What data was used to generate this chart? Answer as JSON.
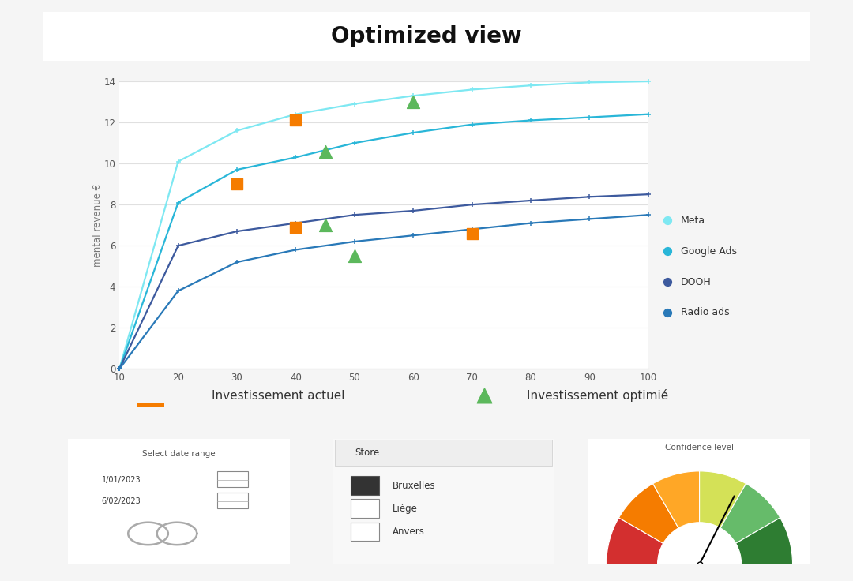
{
  "title": "Optimized view",
  "background_color": "#f5f5f5",
  "plot_bg": "#ffffff",
  "x_values": [
    10,
    20,
    30,
    40,
    50,
    60,
    70,
    80,
    90,
    100
  ],
  "curves": {
    "Meta": {
      "color": "#7ee8f2",
      "values": [
        0,
        10.1,
        11.6,
        12.4,
        12.9,
        13.3,
        13.6,
        13.8,
        13.95,
        14.0
      ]
    },
    "Google Ads": {
      "color": "#29b6d8",
      "values": [
        0,
        8.1,
        9.7,
        10.3,
        11.0,
        11.5,
        11.9,
        12.1,
        12.25,
        12.4
      ]
    },
    "DOOH": {
      "color": "#3d5a9e",
      "values": [
        0,
        6.0,
        6.7,
        7.1,
        7.5,
        7.7,
        8.0,
        8.2,
        8.38,
        8.5
      ]
    },
    "Radio ads": {
      "color": "#2979b8",
      "values": [
        0,
        3.8,
        5.2,
        5.8,
        6.2,
        6.5,
        6.8,
        7.1,
        7.3,
        7.5
      ]
    }
  },
  "orange_markers": [
    [
      40,
      12.1
    ],
    [
      30,
      9.0
    ],
    [
      40,
      6.9
    ],
    [
      70,
      6.6
    ]
  ],
  "green_markers": [
    [
      60,
      13.0
    ],
    [
      45,
      10.6
    ],
    [
      45,
      7.0
    ],
    [
      50,
      5.5
    ]
  ],
  "ylabel": "mental revenue €",
  "xlim": [
    10,
    100
  ],
  "ylim": [
    0,
    14
  ],
  "legend_entries": [
    "Meta",
    "Google Ads",
    "DOOH",
    "Radio ads"
  ],
  "legend_colors": [
    "#7ee8f2",
    "#29b6d8",
    "#3d5a9e",
    "#2979b8"
  ],
  "orange_color": "#f57c00",
  "green_color": "#5cb85c",
  "label_actuel": "Investissement actuel",
  "label_optimise": "Investissement optimié",
  "date_range_label": "Select date range",
  "date1": "1/01/2023",
  "date2": "6/02/2023",
  "store_label": "Store",
  "stores": [
    "Bruxelles",
    "Liège",
    "Anvers"
  ],
  "store_checked": [
    true,
    false,
    false
  ],
  "confidence_label": "Confidence level",
  "gauge_colors": [
    "#d32f2f",
    "#f57c00",
    "#ffa726",
    "#d4e157",
    "#66bb6a",
    "#2e7d32"
  ]
}
